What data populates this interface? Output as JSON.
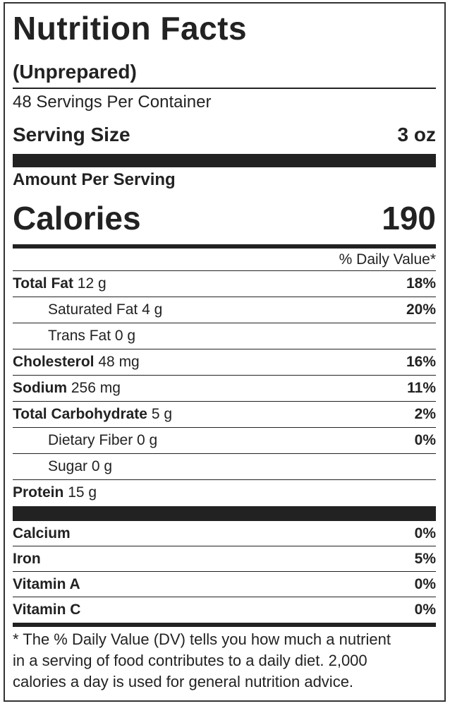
{
  "header": {
    "title": "Nutrition Facts",
    "subtitle": "(Unprepared)",
    "servings": "48 Servings Per Container",
    "serving_size_label": "Serving Size",
    "serving_size": "3 oz"
  },
  "calories": {
    "heading": "Amount Per Serving",
    "label": "Calories",
    "value": "190"
  },
  "daily_value_heading": "% Daily Value*",
  "nutrients": [
    {
      "name": "Total Fat",
      "amount": "12 g",
      "dv": "18%"
    },
    {
      "name": "Saturated Fat",
      "amount": "4 g",
      "dv": "20%",
      "sub": true
    },
    {
      "name": "Trans Fat",
      "amount": "0 g",
      "sub": true
    },
    {
      "name": "Cholesterol",
      "amount": "48 mg",
      "dv": "16%"
    },
    {
      "name": "Sodium",
      "amount": "256 mg",
      "dv": "11%"
    },
    {
      "name": "Total Carbohydrate",
      "amount": "5 g",
      "dv": "2%"
    },
    {
      "name": "Dietary Fiber",
      "amount": "0 g",
      "dv": "0%",
      "sub": true
    },
    {
      "name": "Sugar",
      "amount": "0 g",
      "sub": true
    },
    {
      "name": "Protein",
      "amount": "15 g"
    }
  ],
  "vitamins": [
    {
      "name": "Calcium",
      "dv": "0%"
    },
    {
      "name": "Iron",
      "dv": "5%"
    },
    {
      "name": "Vitamin A",
      "dv": "0%"
    },
    {
      "name": "Vitamin C",
      "dv": "0%"
    }
  ],
  "footnote": [
    "* The % Daily Value (DV) tells you how much a nutrient",
    "in a serving of food contributes to a daily diet. 2,000",
    "calories a day is used for general nutrition advice."
  ]
}
